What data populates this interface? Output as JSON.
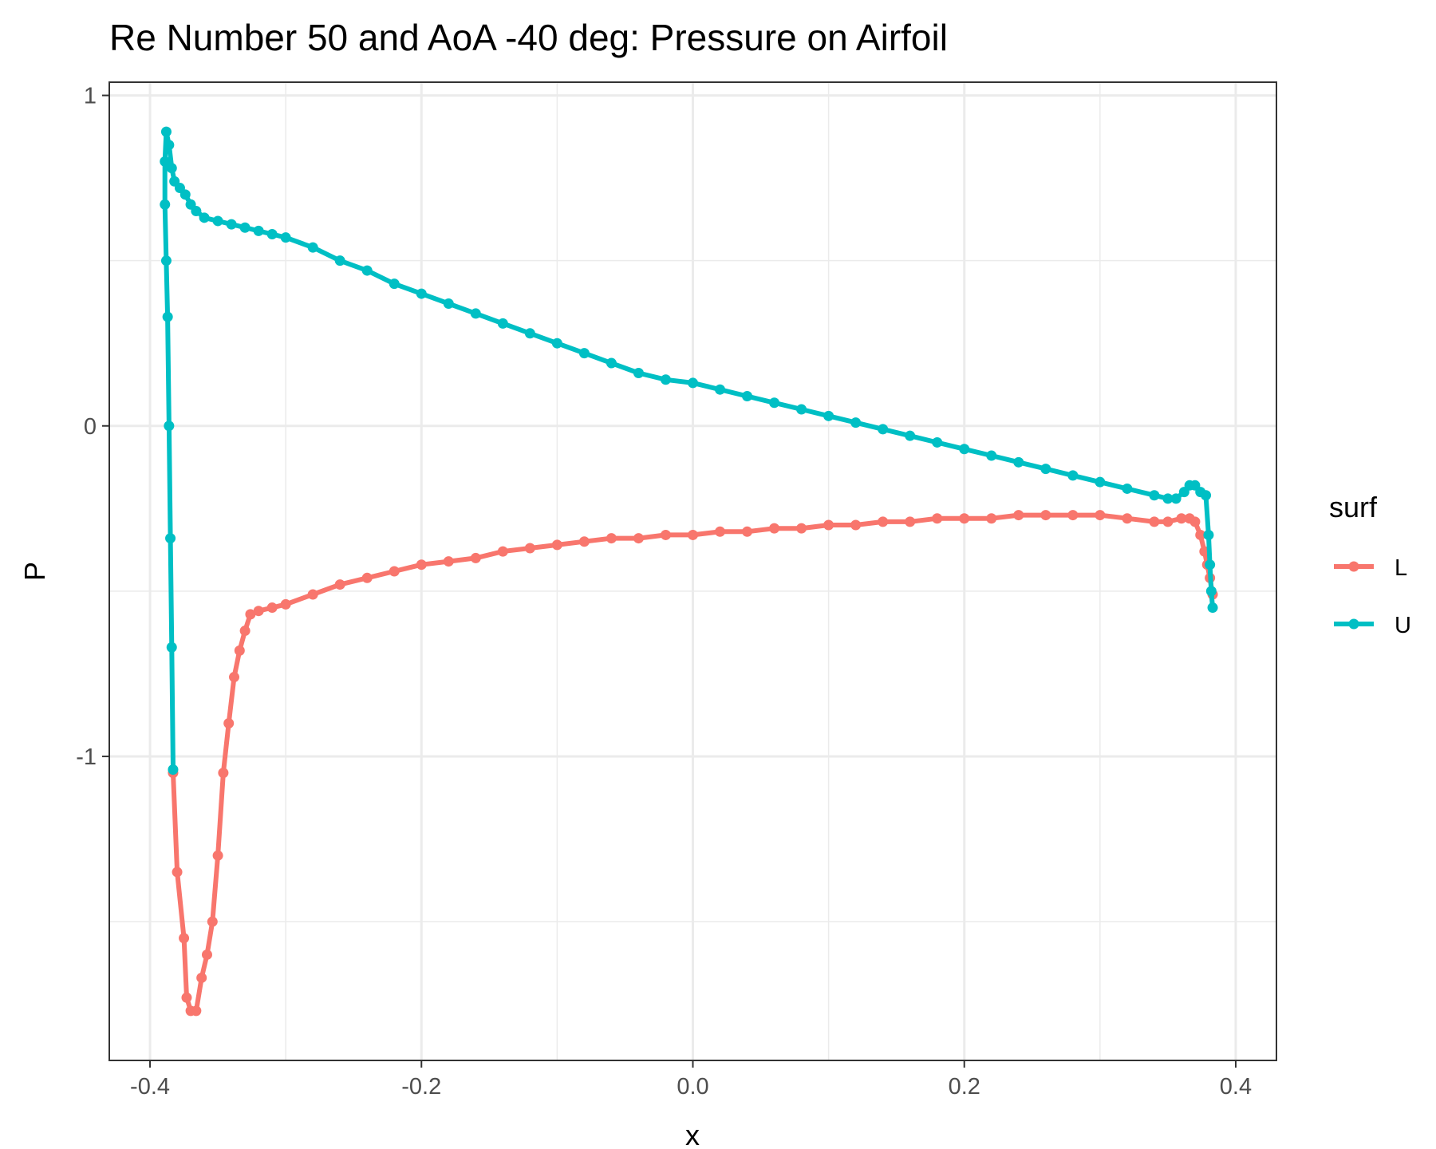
{
  "chart_data": {
    "type": "line",
    "title": "Re Number 50 and AoA -40 deg: Pressure on Airfoil",
    "xlabel": "x",
    "ylabel": "P",
    "xlim": [
      -0.43,
      0.43
    ],
    "ylim": [
      -1.92,
      1.04
    ],
    "x_ticks": [
      -0.4,
      -0.2,
      0.0,
      0.2,
      0.4
    ],
    "x_tick_labels": [
      "-0.4",
      "-0.2",
      "0.0",
      "0.2",
      "0.4"
    ],
    "y_ticks": [
      -1,
      0,
      1
    ],
    "y_tick_labels": [
      "-1",
      "0",
      "1"
    ],
    "y_minor_ticks": [
      -1.5,
      -0.5,
      0.5
    ],
    "grid": true,
    "legend": {
      "title": "surf",
      "placement": "right"
    },
    "colors": {
      "L": "#F8766D",
      "U": "#00BFC4"
    },
    "series": [
      {
        "name": "L",
        "color": "#F8766D",
        "x": [
          -0.383,
          -0.38,
          -0.375,
          -0.373,
          -0.37,
          -0.366,
          -0.362,
          -0.358,
          -0.354,
          -0.35,
          -0.346,
          -0.342,
          -0.338,
          -0.334,
          -0.33,
          -0.326,
          -0.32,
          -0.31,
          -0.3,
          -0.28,
          -0.26,
          -0.24,
          -0.22,
          -0.2,
          -0.18,
          -0.16,
          -0.14,
          -0.12,
          -0.1,
          -0.08,
          -0.06,
          -0.04,
          -0.02,
          0.0,
          0.02,
          0.04,
          0.06,
          0.08,
          0.1,
          0.12,
          0.14,
          0.16,
          0.18,
          0.2,
          0.22,
          0.24,
          0.26,
          0.28,
          0.3,
          0.32,
          0.34,
          0.35,
          0.36,
          0.366,
          0.37,
          0.374,
          0.377,
          0.379,
          0.381,
          0.383
        ],
        "y": [
          -1.05,
          -1.35,
          -1.55,
          -1.73,
          -1.77,
          -1.77,
          -1.67,
          -1.6,
          -1.5,
          -1.3,
          -1.05,
          -0.9,
          -0.76,
          -0.68,
          -0.62,
          -0.57,
          -0.56,
          -0.55,
          -0.54,
          -0.51,
          -0.48,
          -0.46,
          -0.44,
          -0.42,
          -0.41,
          -0.4,
          -0.38,
          -0.37,
          -0.36,
          -0.35,
          -0.34,
          -0.34,
          -0.33,
          -0.33,
          -0.32,
          -0.32,
          -0.31,
          -0.31,
          -0.3,
          -0.3,
          -0.29,
          -0.29,
          -0.28,
          -0.28,
          -0.28,
          -0.27,
          -0.27,
          -0.27,
          -0.27,
          -0.28,
          -0.29,
          -0.29,
          -0.28,
          -0.28,
          -0.29,
          -0.33,
          -0.38,
          -0.42,
          -0.46,
          -0.51
        ]
      },
      {
        "name": "U",
        "color": "#00BFC4",
        "x": [
          -0.383,
          -0.384,
          -0.385,
          -0.386,
          -0.387,
          -0.388,
          -0.389,
          -0.389,
          -0.388,
          -0.386,
          -0.384,
          -0.382,
          -0.378,
          -0.374,
          -0.37,
          -0.366,
          -0.36,
          -0.35,
          -0.34,
          -0.33,
          -0.32,
          -0.31,
          -0.3,
          -0.28,
          -0.26,
          -0.24,
          -0.22,
          -0.2,
          -0.18,
          -0.16,
          -0.14,
          -0.12,
          -0.1,
          -0.08,
          -0.06,
          -0.04,
          -0.02,
          0.0,
          0.02,
          0.04,
          0.06,
          0.08,
          0.1,
          0.12,
          0.14,
          0.16,
          0.18,
          0.2,
          0.22,
          0.24,
          0.26,
          0.28,
          0.3,
          0.32,
          0.34,
          0.35,
          0.356,
          0.362,
          0.366,
          0.37,
          0.374,
          0.378,
          0.38,
          0.381,
          0.382,
          0.383
        ],
        "y": [
          -1.04,
          -0.67,
          -0.34,
          0.0,
          0.33,
          0.5,
          0.67,
          0.8,
          0.89,
          0.85,
          0.78,
          0.74,
          0.72,
          0.7,
          0.67,
          0.65,
          0.63,
          0.62,
          0.61,
          0.6,
          0.59,
          0.58,
          0.57,
          0.54,
          0.5,
          0.47,
          0.43,
          0.4,
          0.37,
          0.34,
          0.31,
          0.28,
          0.25,
          0.22,
          0.19,
          0.16,
          0.14,
          0.13,
          0.11,
          0.09,
          0.07,
          0.05,
          0.03,
          0.01,
          -0.01,
          -0.03,
          -0.05,
          -0.07,
          -0.09,
          -0.11,
          -0.13,
          -0.15,
          -0.17,
          -0.19,
          -0.21,
          -0.22,
          -0.22,
          -0.2,
          -0.18,
          -0.18,
          -0.2,
          -0.21,
          -0.33,
          -0.42,
          -0.5,
          -0.55
        ]
      }
    ]
  }
}
